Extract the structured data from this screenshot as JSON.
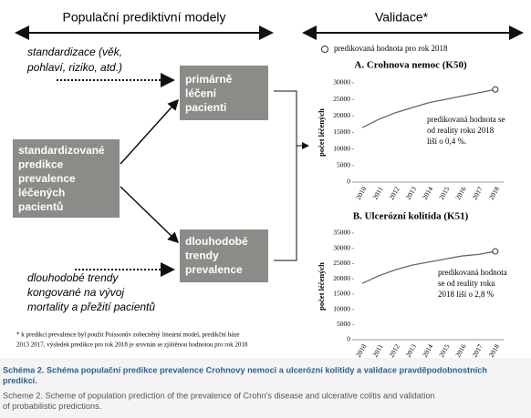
{
  "headers": {
    "left": "Populační prediktivní modely",
    "right": "Validace*"
  },
  "inputs": {
    "top": [
      "standardizace (věk,",
      "pohlaví, riziko, atd.)"
    ],
    "bottom": [
      "dlouhodobé trendy",
      "kongované na vývoj",
      "mortality a přežití pacientů"
    ]
  },
  "boxes": {
    "main": [
      "standardizované",
      "predikce",
      "prevalence",
      "léčených",
      "pacientů"
    ],
    "primary": [
      "primárně",
      "léčení",
      "pacienti"
    ],
    "trends": [
      "dlouhodobé",
      "trendy",
      "prevalence"
    ]
  },
  "footnote": [
    "* k predikci prevalence byl použit Poissonův zobecněný lineární model, predikční báze",
    "2013  2017, výsledek predikce pro rok 2018 je srovnán se zjištěnou hodnotou pro rok 2018"
  ],
  "legend": "predikovaná hodnota pro rok 2018",
  "chart_data": [
    {
      "type": "line",
      "title": "A. Crohnova nemoc (K50)",
      "y_label": "počet léčených",
      "categories": [
        "2010",
        "2011",
        "2012",
        "2013",
        "2014",
        "2015",
        "2016",
        "2017",
        "2018"
      ],
      "values": [
        16500,
        19000,
        21000,
        22500,
        24000,
        25000,
        26000,
        27000,
        28000
      ],
      "color": "#666666",
      "ylim": [
        0,
        30000
      ],
      "yticks": [
        0,
        5000,
        10000,
        15000,
        20000,
        25000,
        30000
      ],
      "grid": false,
      "annotation": [
        "predikovaná hodnota se",
        "od reality roku 2018",
        "liší o 0,4 %."
      ]
    },
    {
      "type": "line",
      "title": "B. Ulcerózní kolitida (K51)",
      "y_label": "počet léčených",
      "categories": [
        "2010",
        "2011",
        "2012",
        "2013",
        "2014",
        "2015",
        "2016",
        "2017",
        "2018"
      ],
      "values": [
        18500,
        21000,
        23000,
        24500,
        25500,
        26500,
        27500,
        28000,
        29000
      ],
      "color": "#666666",
      "ylim": [
        0,
        35000
      ],
      "yticks": [
        0,
        5000,
        10000,
        15000,
        20000,
        25000,
        30000,
        35000
      ],
      "grid": false,
      "annotation": [
        "predikovaná hodnota",
        "se od reality roku",
        "2018 liší o 2,8 %"
      ]
    }
  ],
  "caption": {
    "cz": [
      "Schéma 2. Schéma populační predikce prevalence Crohnovy nemoci a ulcerózní kolitidy a validace pravděpodobnostních",
      "predikcí."
    ],
    "en": [
      "Scheme 2. Scheme of population prediction of the prevalence of Crohn's disease and ulcerative colitis and validation",
      "of probabilistic predictions."
    ]
  }
}
